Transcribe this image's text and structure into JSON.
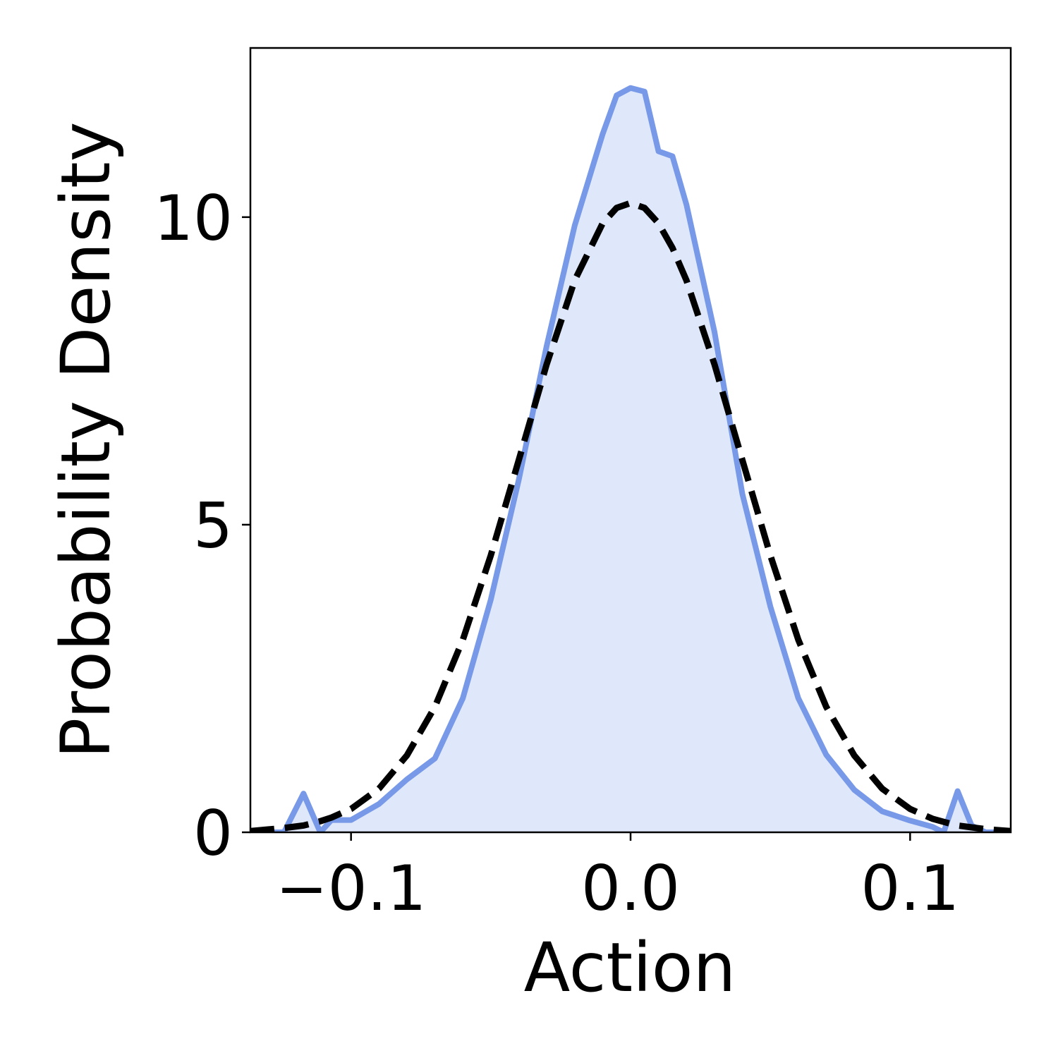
{
  "chart_data": {
    "type": "line",
    "xlabel": "Action",
    "ylabel": "Probability Density",
    "x": [
      -0.136,
      -0.124,
      -0.117,
      -0.111,
      -0.107,
      -0.1,
      -0.09,
      -0.08,
      -0.07,
      -0.06,
      -0.05,
      -0.04,
      -0.03,
      -0.02,
      -0.01,
      -0.005,
      0.0,
      0.005,
      0.01,
      0.015,
      0.02,
      0.03,
      0.04,
      0.05,
      0.06,
      0.07,
      0.08,
      0.09,
      0.1,
      0.108,
      0.112,
      0.117,
      0.122,
      0.127,
      0.136
    ],
    "series": [
      {
        "color": "#7799e8",
        "fill_color": "#dfe8fa",
        "fill": true,
        "linestyle": "solid",
        "values": [
          0,
          0,
          0.63,
          0,
          0.2,
          0.2,
          0.46,
          0.86,
          1.2,
          2.18,
          3.78,
          5.73,
          7.91,
          9.86,
          11.35,
          11.98,
          12.1,
          12.04,
          11.07,
          10.99,
          10.2,
          8.14,
          5.5,
          3.67,
          2.18,
          1.26,
          0.69,
          0.34,
          0.19,
          0.09,
          0,
          0.67,
          0.11,
          0,
          0
        ]
      },
      {
        "color": "#000000",
        "fill": false,
        "linestyle": "dashed",
        "values": [
          0.02,
          0.07,
          0.11,
          0.18,
          0.24,
          0.38,
          0.71,
          1.25,
          2.04,
          3.13,
          4.5,
          6.05,
          7.61,
          8.97,
          9.9,
          10.15,
          10.23,
          10.15,
          9.9,
          9.5,
          8.97,
          7.61,
          6.05,
          4.5,
          3.13,
          2.04,
          1.25,
          0.71,
          0.38,
          0.22,
          0.17,
          0.11,
          0.08,
          0.05,
          0.02
        ]
      }
    ],
    "xlim": [
      -0.136,
      0.136
    ],
    "xticks": [
      {
        "value": -0.1,
        "label": "−0.1"
      },
      {
        "value": 0.0,
        "label": "0.0"
      },
      {
        "value": 0.1,
        "label": "0.1"
      }
    ],
    "ylim": [
      0,
      12.75
    ],
    "yticks": [
      0,
      5,
      10
    ],
    "grid": false
  }
}
